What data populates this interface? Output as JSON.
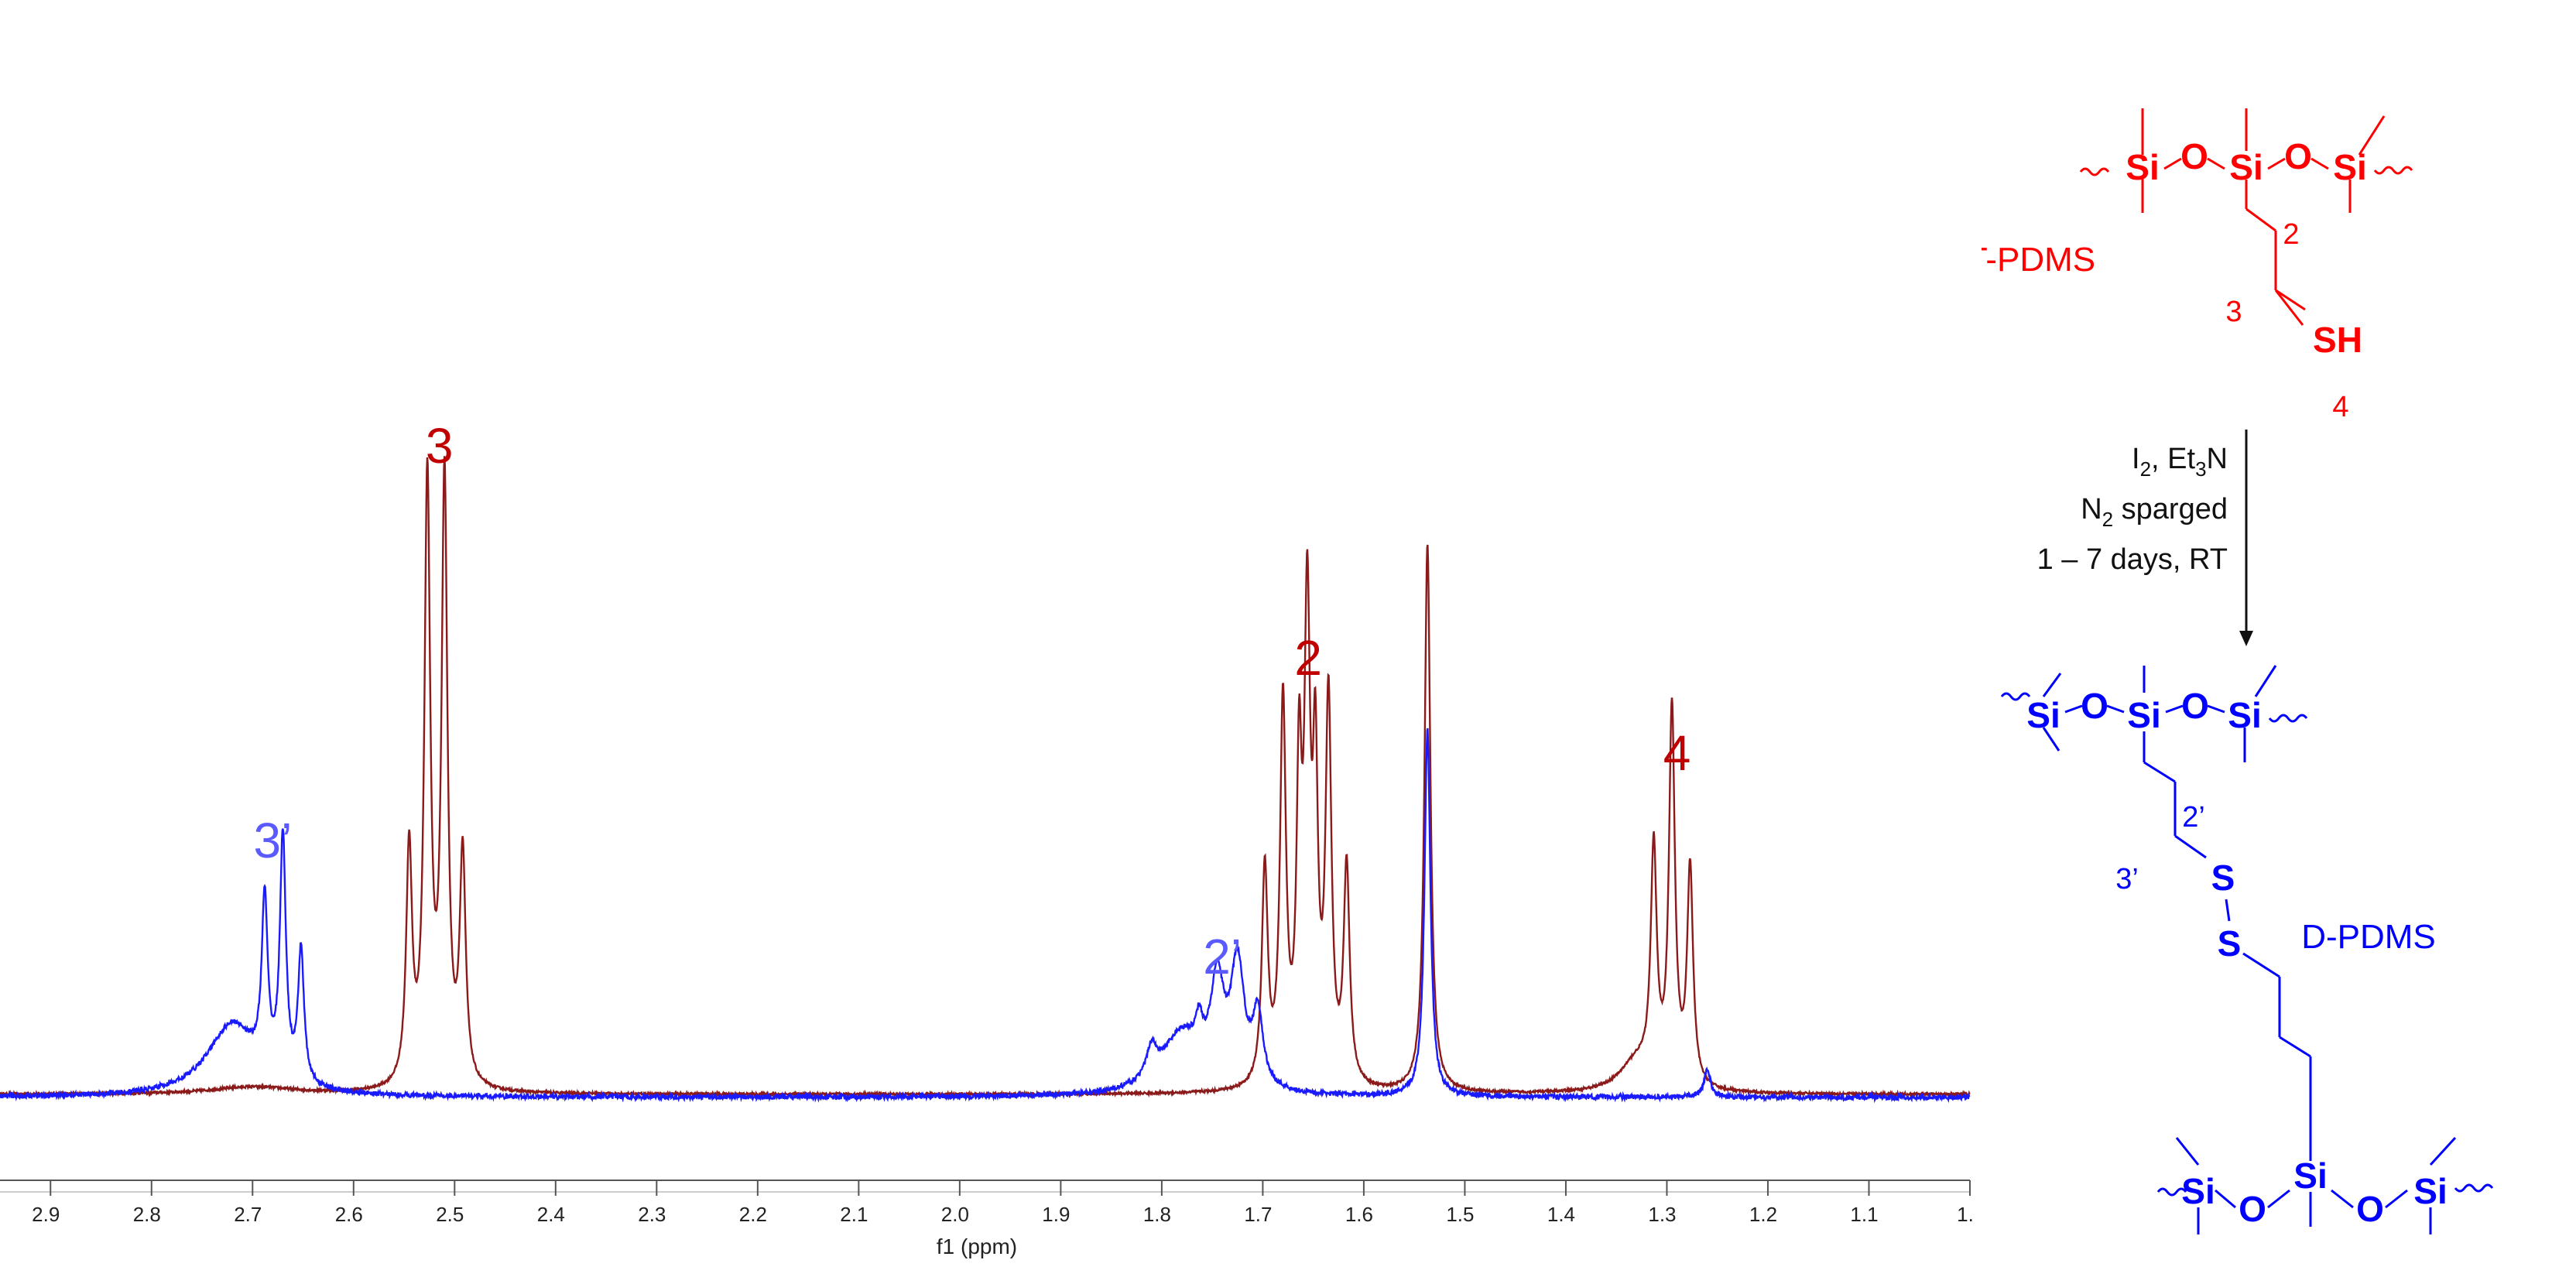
{
  "chart_data": {
    "type": "line",
    "title": "",
    "xlabel": "f1 (ppm)",
    "ylabel": "",
    "x_reversed": true,
    "xlim": [
      2.95,
      1.0
    ],
    "x_ticks": [
      2.9,
      2.8,
      2.7,
      2.6,
      2.5,
      2.4,
      2.3,
      2.2,
      2.1,
      2.0,
      1.9,
      1.8,
      1.7,
      1.6,
      1.5,
      1.4,
      1.3,
      1.2,
      1.1,
      1.0
    ],
    "x_tick_labels": [
      "2.9",
      "2.8",
      "2.7",
      "2.6",
      "2.5",
      "2.4",
      "2.3",
      "2.2",
      "2.1",
      "2.0",
      "1.9",
      "1.8",
      "1.7",
      "1.6",
      "1.5",
      "1.4",
      "1.3",
      "1.2",
      "1.1",
      "1."
    ],
    "ylim": [
      0,
      1.0
    ],
    "grid": false,
    "series": [
      {
        "color": "#8b1a1a",
        "baseline": 0.005,
        "peaks": [
          {
            "x": 2.545,
            "h": 0.39,
            "w": 0.0035
          },
          {
            "x": 2.527,
            "h": 1.0,
            "w": 0.0035
          },
          {
            "x": 2.51,
            "h": 1.0,
            "w": 0.0035
          },
          {
            "x": 2.492,
            "h": 0.38,
            "w": 0.0035
          },
          {
            "x": 2.7,
            "h": 0.012,
            "w": 0.05
          },
          {
            "x": 1.698,
            "h": 0.36,
            "w": 0.0035
          },
          {
            "x": 1.68,
            "h": 0.63,
            "w": 0.0035
          },
          {
            "x": 1.664,
            "h": 0.48,
            "w": 0.003
          },
          {
            "x": 1.656,
            "h": 0.75,
            "w": 0.0035
          },
          {
            "x": 1.648,
            "h": 0.48,
            "w": 0.003
          },
          {
            "x": 1.635,
            "h": 0.63,
            "w": 0.0035
          },
          {
            "x": 1.617,
            "h": 0.36,
            "w": 0.0035
          },
          {
            "x": 1.537,
            "h": 0.91,
            "w": 0.0035
          },
          {
            "x": 1.313,
            "h": 0.38,
            "w": 0.0035
          },
          {
            "x": 1.295,
            "h": 0.62,
            "w": 0.0035
          },
          {
            "x": 1.277,
            "h": 0.36,
            "w": 0.0035
          },
          {
            "x": 1.33,
            "h": 0.05,
            "w": 0.02
          }
        ]
      },
      {
        "color": "#1a1aff",
        "baseline": 0.0,
        "peaks": [
          {
            "x": 2.688,
            "h": 0.28,
            "w": 0.0035
          },
          {
            "x": 2.67,
            "h": 0.4,
            "w": 0.0035
          },
          {
            "x": 2.652,
            "h": 0.22,
            "w": 0.0035
          },
          {
            "x": 2.72,
            "h": 0.12,
            "w": 0.03
          },
          {
            "x": 1.78,
            "h": 0.1,
            "w": 0.025
          },
          {
            "x": 1.745,
            "h": 0.16,
            "w": 0.008
          },
          {
            "x": 1.725,
            "h": 0.2,
            "w": 0.008
          },
          {
            "x": 1.705,
            "h": 0.12,
            "w": 0.006
          },
          {
            "x": 1.81,
            "h": 0.05,
            "w": 0.006
          },
          {
            "x": 1.763,
            "h": 0.05,
            "w": 0.004
          },
          {
            "x": 1.537,
            "h": 0.61,
            "w": 0.0035
          },
          {
            "x": 1.26,
            "h": 0.045,
            "w": 0.004
          }
        ]
      }
    ],
    "annotations": [
      {
        "text": "3",
        "x": 2.515,
        "color": "#c00000"
      },
      {
        "text": "2",
        "x": 1.655,
        "color": "#c00000"
      },
      {
        "text": "4",
        "x": 1.29,
        "color": "#c00000"
      },
      {
        "text": "3’",
        "x": 2.68,
        "color": "#5a5aff"
      },
      {
        "text": "2’",
        "x": 1.74,
        "color": "#5a5aff"
      }
    ]
  },
  "scheme": {
    "t_pdms": {
      "color": "#ff0000",
      "name": "T-PDMS",
      "si": "Si",
      "o": "O",
      "sh": "SH",
      "pos2": "2",
      "pos3": "3",
      "pos4": "4"
    },
    "conditions": {
      "reagent_I": "I",
      "reagent_I_sub": "2",
      "reagent_rest": ", Et",
      "reagent_sub3": "3",
      "reagent_N": "N",
      "gas_N": "N",
      "gas_sub": "2",
      "gas_rest": " sparged",
      "time": "1 – 7 days, RT"
    },
    "d_pdms": {
      "color": "#0000ff",
      "name": "D-PDMS",
      "si": "Si",
      "o": "O",
      "s": "S",
      "pos2": "2’",
      "pos3": "3’"
    }
  }
}
